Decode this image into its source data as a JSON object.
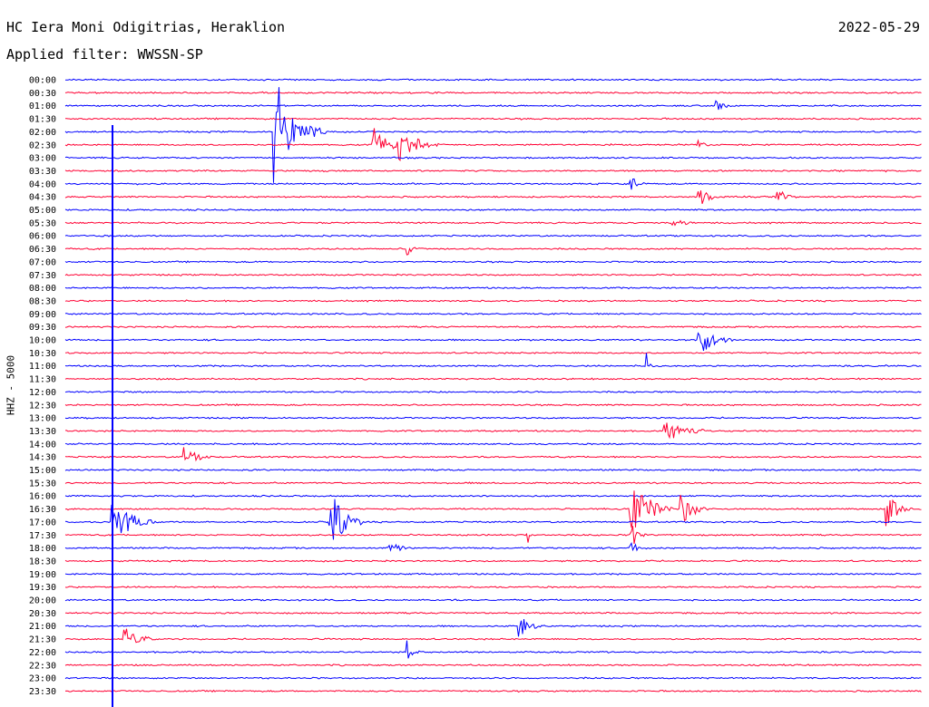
{
  "header": {
    "station": "HC Iera Moni Odigitrias, Heraklion",
    "filter": "Applied filter: WWSSN-SP",
    "date": "2022-05-29"
  },
  "colors": {
    "blue": "#0000ff",
    "red": "#ff0033"
  },
  "chart_data": {
    "type": "line",
    "title": "HC Iera Moni Odigitrias, Heraklion",
    "subtitle": "Applied filter: WWSSN-SP",
    "ylabel": "HHZ - 5000",
    "xlabel": "",
    "grid": false,
    "tick_labels": [
      "00:00",
      "00:30",
      "01:00",
      "01:30",
      "02:00",
      "02:30",
      "03:00",
      "03:30",
      "04:00",
      "04:30",
      "05:00",
      "05:30",
      "06:00",
      "06:30",
      "07:00",
      "07:30",
      "08:00",
      "08:30",
      "09:00",
      "09:30",
      "10:00",
      "10:30",
      "11:00",
      "11:30",
      "12:00",
      "12:30",
      "13:00",
      "13:30",
      "14:00",
      "14:30",
      "15:00",
      "15:30",
      "16:00",
      "16:30",
      "17:00",
      "17:30",
      "18:00",
      "18:30",
      "19:00",
      "19:30",
      "20:00",
      "20:30",
      "21:00",
      "21:30",
      "22:00",
      "22:30",
      "23:00",
      "23:30"
    ],
    "events": [
      {
        "row": 2,
        "pos": 0.76,
        "amp": 0.6,
        "dur": 0.03
      },
      {
        "row": 4,
        "pos": 0.245,
        "amp": 4.5,
        "dur": 0.06
      },
      {
        "row": 5,
        "pos": 0.36,
        "amp": 1.5,
        "dur": 0.05
      },
      {
        "row": 5,
        "pos": 0.39,
        "amp": 1.7,
        "dur": 0.05
      },
      {
        "row": 5,
        "pos": 0.74,
        "amp": 0.5,
        "dur": 0.02
      },
      {
        "row": 8,
        "pos": 0.66,
        "amp": 1.0,
        "dur": 0.02
      },
      {
        "row": 9,
        "pos": 0.74,
        "amp": 0.9,
        "dur": 0.03
      },
      {
        "row": 9,
        "pos": 0.83,
        "amp": 0.9,
        "dur": 0.03
      },
      {
        "row": 11,
        "pos": 0.71,
        "amp": 0.7,
        "dur": 0.03
      },
      {
        "row": 13,
        "pos": 0.4,
        "amp": 0.9,
        "dur": 0.02
      },
      {
        "row": 20,
        "pos": 0.74,
        "amp": 1.9,
        "dur": 0.04
      },
      {
        "row": 22,
        "pos": 0.68,
        "amp": 0.8,
        "dur": 0.01
      },
      {
        "row": 27,
        "pos": 0.7,
        "amp": 0.9,
        "dur": 0.07
      },
      {
        "row": 29,
        "pos": 0.14,
        "amp": 0.8,
        "dur": 0.04
      },
      {
        "row": 33,
        "pos": 0.66,
        "amp": 3.0,
        "dur": 0.05
      },
      {
        "row": 33,
        "pos": 0.72,
        "amp": 1.4,
        "dur": 0.04
      },
      {
        "row": 33,
        "pos": 0.96,
        "amp": 1.6,
        "dur": 0.03
      },
      {
        "row": 34,
        "pos": 0.055,
        "amp": 2.5,
        "dur": 0.05
      },
      {
        "row": 34,
        "pos": 0.31,
        "amp": 3.0,
        "dur": 0.04
      },
      {
        "row": 35,
        "pos": 0.54,
        "amp": 0.7,
        "dur": 0.01
      },
      {
        "row": 35,
        "pos": 0.66,
        "amp": 1.5,
        "dur": 0.02
      },
      {
        "row": 36,
        "pos": 0.38,
        "amp": 0.7,
        "dur": 0.03
      },
      {
        "row": 36,
        "pos": 0.66,
        "amp": 0.6,
        "dur": 0.03
      },
      {
        "row": 42,
        "pos": 0.53,
        "amp": 1.1,
        "dur": 0.03
      },
      {
        "row": 43,
        "pos": 0.07,
        "amp": 1.2,
        "dur": 0.04
      },
      {
        "row": 44,
        "pos": 0.4,
        "amp": 0.8,
        "dur": 0.02
      }
    ]
  }
}
